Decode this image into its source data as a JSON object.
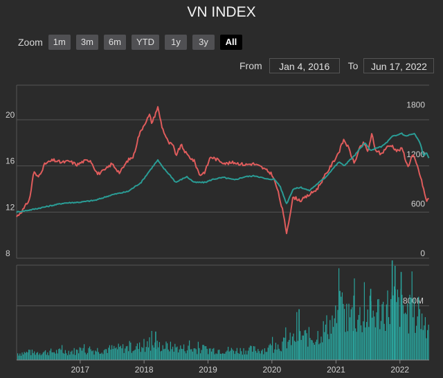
{
  "title": "VN INDEX",
  "zoom": {
    "label": "Zoom",
    "buttons": [
      "1m",
      "3m",
      "6m",
      "YTD",
      "1y",
      "3y",
      "All"
    ],
    "active": "All"
  },
  "range": {
    "from_label": "From",
    "from_value": "Jan 4, 2016",
    "to_label": "To",
    "to_value": "Jun 17, 2022"
  },
  "colors": {
    "red_series": "#e05c5c",
    "teal_series": "#2a9d96",
    "volume": "#2aa39c",
    "grid": "#555555",
    "background": "#2b2b2b"
  },
  "chart_data": [
    {
      "type": "line",
      "panel": "price",
      "x_axis": {
        "type": "date",
        "range": [
          "2016-01-04",
          "2022-06-17"
        ]
      },
      "left_axis": {
        "ticks": [
          8,
          12,
          16,
          20
        ],
        "range": [
          8,
          23
        ]
      },
      "right_axis": {
        "ticks": [
          0,
          600,
          1200,
          1800
        ],
        "range": [
          0,
          2100
        ]
      },
      "grid": true,
      "series": [
        {
          "axis": "left",
          "color": "#e05c5c",
          "points": [
            [
              "2016-01-04",
              11.6
            ],
            [
              "2016-02-15",
              12.3
            ],
            [
              "2016-03-20",
              13.2
            ],
            [
              "2016-04-10",
              15.5
            ],
            [
              "2016-05-05",
              15.0
            ],
            [
              "2016-06-15",
              16.2
            ],
            [
              "2016-08-01",
              16.5
            ],
            [
              "2016-09-15",
              16.3
            ],
            [
              "2016-11-01",
              16.4
            ],
            [
              "2016-12-15",
              16.1
            ],
            [
              "2017-01-20",
              16.4
            ],
            [
              "2017-03-01",
              16.5
            ],
            [
              "2017-04-10",
              15.3
            ],
            [
              "2017-05-20",
              15.6
            ],
            [
              "2017-07-01",
              16.2
            ],
            [
              "2017-08-15",
              15.4
            ],
            [
              "2017-10-01",
              16.5
            ],
            [
              "2017-11-01",
              16.8
            ],
            [
              "2017-12-01",
              18.6
            ],
            [
              "2018-01-01",
              19.6
            ],
            [
              "2018-02-01",
              20.4
            ],
            [
              "2018-02-15",
              19.7
            ],
            [
              "2018-03-20",
              21.1
            ],
            [
              "2018-04-15",
              19.3
            ],
            [
              "2018-05-20",
              18.0
            ],
            [
              "2018-06-15",
              17.8
            ],
            [
              "2018-07-01",
              16.9
            ],
            [
              "2018-08-01",
              17.8
            ],
            [
              "2018-09-01",
              17.0
            ],
            [
              "2018-10-15",
              16.4
            ],
            [
              "2018-11-15",
              15.2
            ],
            [
              "2018-12-15",
              15.5
            ],
            [
              "2019-01-15",
              16.8
            ],
            [
              "2019-03-01",
              16.5
            ],
            [
              "2019-04-15",
              16.2
            ],
            [
              "2019-06-01",
              16.3
            ],
            [
              "2019-08-01",
              16.1
            ],
            [
              "2019-09-15",
              16.2
            ],
            [
              "2019-11-01",
              15.9
            ],
            [
              "2020-01-01",
              15.3
            ],
            [
              "2020-02-01",
              14.0
            ],
            [
              "2020-03-01",
              12.2
            ],
            [
              "2020-03-25",
              10.2
            ],
            [
              "2020-05-01",
              13.3
            ],
            [
              "2020-06-15",
              13.0
            ],
            [
              "2020-08-01",
              13.5
            ],
            [
              "2020-09-15",
              14.0
            ],
            [
              "2020-11-01",
              15.2
            ],
            [
              "2020-12-15",
              16.3
            ],
            [
              "2021-01-20",
              17.3
            ],
            [
              "2021-02-15",
              18.3
            ],
            [
              "2021-03-15",
              17.5
            ],
            [
              "2021-04-15",
              16.2
            ],
            [
              "2021-05-15",
              17.5
            ],
            [
              "2021-06-10",
              18.0
            ],
            [
              "2021-07-01",
              17.2
            ],
            [
              "2021-07-25",
              18.8
            ],
            [
              "2021-08-10",
              17.5
            ],
            [
              "2021-09-15",
              17.0
            ],
            [
              "2021-10-15",
              17.6
            ],
            [
              "2021-11-15",
              17.8
            ],
            [
              "2021-12-15",
              17.3
            ],
            [
              "2022-01-15",
              17.5
            ],
            [
              "2022-02-15",
              15.9
            ],
            [
              "2022-03-15",
              17.0
            ],
            [
              "2022-04-15",
              15.8
            ],
            [
              "2022-05-15",
              14.1
            ],
            [
              "2022-06-01",
              12.9
            ],
            [
              "2022-06-17",
              13.3
            ]
          ]
        },
        {
          "axis": "right",
          "color": "#2a9d96",
          "points": [
            [
              "2016-01-04",
              560
            ],
            [
              "2016-04-01",
              590
            ],
            [
              "2016-07-01",
              630
            ],
            [
              "2016-10-01",
              670
            ],
            [
              "2017-01-01",
              680
            ],
            [
              "2017-04-01",
              705
            ],
            [
              "2017-07-01",
              770
            ],
            [
              "2017-10-01",
              810
            ],
            [
              "2017-12-15",
              920
            ],
            [
              "2018-02-01",
              1060
            ],
            [
              "2018-03-20",
              1190
            ],
            [
              "2018-04-15",
              1110
            ],
            [
              "2018-06-01",
              1000
            ],
            [
              "2018-07-01",
              920
            ],
            [
              "2018-09-01",
              990
            ],
            [
              "2018-10-15",
              920
            ],
            [
              "2018-12-15",
              920
            ],
            [
              "2019-02-01",
              960
            ],
            [
              "2019-04-01",
              980
            ],
            [
              "2019-06-01",
              950
            ],
            [
              "2019-08-01",
              990
            ],
            [
              "2019-10-01",
              1000
            ],
            [
              "2019-12-01",
              960
            ],
            [
              "2020-01-15",
              960
            ],
            [
              "2020-02-15",
              880
            ],
            [
              "2020-03-25",
              660
            ],
            [
              "2020-05-01",
              840
            ],
            [
              "2020-06-15",
              860
            ],
            [
              "2020-08-01",
              820
            ],
            [
              "2020-09-15",
              900
            ],
            [
              "2020-11-01",
              980
            ],
            [
              "2020-12-15",
              1090
            ],
            [
              "2021-01-20",
              1170
            ],
            [
              "2021-02-15",
              1120
            ],
            [
              "2021-03-15",
              1180
            ],
            [
              "2021-04-15",
              1240
            ],
            [
              "2021-05-15",
              1320
            ],
            [
              "2021-06-15",
              1400
            ],
            [
              "2021-07-20",
              1300
            ],
            [
              "2021-08-15",
              1340
            ],
            [
              "2021-09-15",
              1350
            ],
            [
              "2021-10-15",
              1400
            ],
            [
              "2021-11-20",
              1480
            ],
            [
              "2021-12-15",
              1490
            ],
            [
              "2022-01-10",
              1520
            ],
            [
              "2022-02-01",
              1480
            ],
            [
              "2022-03-01",
              1500
            ],
            [
              "2022-03-25",
              1510
            ],
            [
              "2022-04-15",
              1440
            ],
            [
              "2022-05-01",
              1370
            ],
            [
              "2022-05-15",
              1240
            ],
            [
              "2022-06-01",
              1280
            ],
            [
              "2022-06-17",
              1210
            ]
          ]
        }
      ]
    },
    {
      "type": "bar",
      "panel": "volume",
      "x_axis": {
        "type": "date",
        "range": [
          "2016-01-04",
          "2022-06-17"
        ]
      },
      "x_tick_labels": [
        "2017",
        "2018",
        "2019",
        "2020",
        "2021",
        "2022"
      ],
      "right_axis": {
        "ticks": [
          "800M"
        ],
        "range": [
          0,
          1400
        ]
      },
      "grid": true,
      "color": "#2aa39c",
      "baseline_envelope": [
        [
          "2016-01-04",
          120
        ],
        [
          "2016-06-01",
          140
        ],
        [
          "2017-01-01",
          160
        ],
        [
          "2017-06-01",
          190
        ],
        [
          "2017-12-01",
          230
        ],
        [
          "2018-03-01",
          260
        ],
        [
          "2018-09-01",
          200
        ],
        [
          "2019-06-01",
          170
        ],
        [
          "2019-12-01",
          190
        ],
        [
          "2020-03-01",
          280
        ],
        [
          "2020-06-01",
          420
        ],
        [
          "2020-09-01",
          400
        ],
        [
          "2020-12-01",
          650
        ],
        [
          "2021-02-01",
          800
        ],
        [
          "2021-06-01",
          760
        ],
        [
          "2021-09-01",
          860
        ],
        [
          "2021-12-01",
          1000
        ],
        [
          "2022-02-01",
          850
        ],
        [
          "2022-04-01",
          760
        ],
        [
          "2022-06-17",
          660
        ]
      ],
      "peaks": [
        [
          "2018-03-05",
          420
        ],
        [
          "2020-06-01",
          750
        ],
        [
          "2021-01-20",
          1020
        ],
        [
          "2021-04-10",
          950
        ],
        [
          "2021-07-15",
          1050
        ],
        [
          "2021-11-15",
          1470
        ],
        [
          "2021-12-01",
          1390
        ],
        [
          "2022-01-05",
          1300
        ]
      ]
    }
  ]
}
